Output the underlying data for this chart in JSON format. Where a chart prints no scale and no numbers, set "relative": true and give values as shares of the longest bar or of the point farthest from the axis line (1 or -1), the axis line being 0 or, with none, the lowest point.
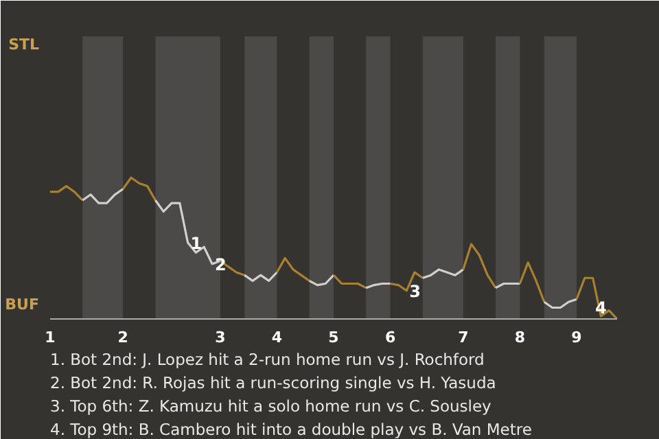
{
  "chart_data": {
    "type": "line",
    "relative": true,
    "categories": [
      "1",
      null,
      null,
      null,
      null,
      null,
      null,
      null,
      null,
      "2",
      null,
      null,
      null,
      null,
      null,
      null,
      null,
      null,
      null,
      null,
      null,
      "3",
      null,
      null,
      null,
      null,
      null,
      null,
      "4",
      null,
      null,
      null,
      null,
      null,
      null,
      "5",
      null,
      null,
      null,
      null,
      null,
      null,
      "6",
      null,
      null,
      null,
      null,
      null,
      null,
      null,
      null,
      "7",
      null,
      null,
      null,
      null,
      null,
      null,
      "8",
      null,
      null,
      null,
      null,
      null,
      null,
      "9",
      null,
      null,
      null,
      null,
      null
    ],
    "marker": "none",
    "line_style": "solid",
    "series": [
      {
        "color": "#a8802f",
        "values": [
          0.9,
          0.9,
          0.94,
          0.9,
          0.84,
          null,
          null,
          null,
          null,
          null,
          null,
          null,
          null,
          null,
          null,
          null,
          null,
          null,
          null,
          null,
          null,
          null,
          null,
          null,
          null,
          null,
          null,
          null,
          null,
          null,
          null,
          null,
          null,
          null,
          null,
          null,
          null,
          null,
          null,
          null,
          null,
          null,
          null,
          null,
          null,
          null,
          null,
          null,
          null,
          null,
          null,
          null,
          null,
          null,
          null,
          null,
          null,
          null,
          null,
          null,
          null,
          null,
          null,
          null,
          null,
          null,
          null,
          null,
          null,
          null,
          null
        ]
      },
      {
        "color": "#d0d0d0",
        "values": [
          null,
          null,
          null,
          null,
          0.84,
          0.88,
          0.82,
          0.82,
          0.88,
          0.92,
          null,
          null,
          null,
          null,
          null,
          null,
          null,
          null,
          null,
          null,
          null,
          null,
          null,
          null,
          null,
          null,
          null,
          null,
          null,
          null,
          null,
          null,
          null,
          null,
          null,
          null,
          null,
          null,
          null,
          null,
          null,
          null,
          null,
          null,
          null,
          null,
          null,
          null,
          null,
          null,
          null,
          null,
          null,
          null,
          null,
          null,
          null,
          null,
          null,
          null,
          null,
          null,
          null,
          null,
          null,
          null,
          null,
          null,
          null,
          null,
          null
        ]
      },
      {
        "color": "#a8802f",
        "values": [
          null,
          null,
          null,
          null,
          null,
          null,
          null,
          null,
          null,
          0.92,
          1,
          0.96,
          0.94,
          0.84,
          null,
          null,
          null,
          null,
          null,
          null,
          null,
          null,
          null,
          null,
          null,
          null,
          null,
          null,
          null,
          null,
          null,
          null,
          null,
          null,
          null,
          null,
          null,
          null,
          null,
          null,
          null,
          null,
          null,
          null,
          null,
          null,
          null,
          null,
          null,
          null,
          null,
          null,
          null,
          null,
          null,
          null,
          null,
          null,
          null,
          null,
          null,
          null,
          null,
          null,
          null,
          null,
          null,
          null,
          null,
          null,
          null
        ]
      },
      {
        "color": "#d0d0d0",
        "values": [
          null,
          null,
          null,
          null,
          null,
          null,
          null,
          null,
          null,
          null,
          null,
          null,
          null,
          0.84,
          0.76,
          0.82,
          0.82,
          0.54,
          0.47,
          0.51,
          0.39,
          0.41,
          null,
          null,
          null,
          null,
          null,
          null,
          null,
          null,
          null,
          null,
          null,
          null,
          null,
          null,
          null,
          null,
          null,
          null,
          null,
          null,
          null,
          null,
          null,
          null,
          null,
          null,
          null,
          null,
          null,
          null,
          null,
          null,
          null,
          null,
          null,
          null,
          null,
          null,
          null,
          null,
          null,
          null,
          null,
          null,
          null,
          null,
          null,
          null,
          null
        ]
      },
      {
        "color": "#a8802f",
        "values": [
          null,
          null,
          null,
          null,
          null,
          null,
          null,
          null,
          null,
          null,
          null,
          null,
          null,
          null,
          null,
          null,
          null,
          null,
          null,
          null,
          null,
          0.41,
          0.37,
          0.33,
          0.31,
          null,
          null,
          null,
          null,
          null,
          null,
          null,
          null,
          null,
          null,
          null,
          null,
          null,
          null,
          null,
          null,
          null,
          null,
          null,
          null,
          null,
          null,
          null,
          null,
          null,
          null,
          null,
          null,
          null,
          null,
          null,
          null,
          null,
          null,
          null,
          null,
          null,
          null,
          null,
          null,
          null,
          null,
          null,
          null,
          null,
          null
        ]
      },
      {
        "color": "#d0d0d0",
        "values": [
          null,
          null,
          null,
          null,
          null,
          null,
          null,
          null,
          null,
          null,
          null,
          null,
          null,
          null,
          null,
          null,
          null,
          null,
          null,
          null,
          null,
          null,
          null,
          null,
          0.31,
          0.27,
          0.31,
          0.27,
          0.33,
          null,
          null,
          null,
          null,
          null,
          null,
          null,
          null,
          null,
          null,
          null,
          null,
          null,
          null,
          null,
          null,
          null,
          null,
          null,
          null,
          null,
          null,
          null,
          null,
          null,
          null,
          null,
          null,
          null,
          null,
          null,
          null,
          null,
          null,
          null,
          null,
          null,
          null,
          null,
          null,
          null,
          null
        ]
      },
      {
        "color": "#a8802f",
        "values": [
          null,
          null,
          null,
          null,
          null,
          null,
          null,
          null,
          null,
          null,
          null,
          null,
          null,
          null,
          null,
          null,
          null,
          null,
          null,
          null,
          null,
          null,
          null,
          null,
          null,
          null,
          null,
          null,
          0.33,
          0.43,
          0.35,
          0.31,
          0.27,
          null,
          null,
          null,
          null,
          null,
          null,
          null,
          null,
          null,
          null,
          null,
          null,
          null,
          null,
          null,
          null,
          null,
          null,
          null,
          null,
          null,
          null,
          null,
          null,
          null,
          null,
          null,
          null,
          null,
          null,
          null,
          null,
          null,
          null,
          null,
          null,
          null,
          null
        ]
      },
      {
        "color": "#d0d0d0",
        "values": [
          null,
          null,
          null,
          null,
          null,
          null,
          null,
          null,
          null,
          null,
          null,
          null,
          null,
          null,
          null,
          null,
          null,
          null,
          null,
          null,
          null,
          null,
          null,
          null,
          null,
          null,
          null,
          null,
          null,
          null,
          null,
          null,
          0.27,
          0.24,
          0.25,
          0.31,
          null,
          null,
          null,
          null,
          null,
          null,
          null,
          null,
          null,
          null,
          null,
          null,
          null,
          null,
          null,
          null,
          null,
          null,
          null,
          null,
          null,
          null,
          null,
          null,
          null,
          null,
          null,
          null,
          null,
          null,
          null,
          null,
          null,
          null,
          null
        ]
      },
      {
        "color": "#a8802f",
        "values": [
          null,
          null,
          null,
          null,
          null,
          null,
          null,
          null,
          null,
          null,
          null,
          null,
          null,
          null,
          null,
          null,
          null,
          null,
          null,
          null,
          null,
          null,
          null,
          null,
          null,
          null,
          null,
          null,
          null,
          null,
          null,
          null,
          null,
          null,
          null,
          0.31,
          0.25,
          0.25,
          0.25,
          0.22,
          null,
          null,
          null,
          null,
          null,
          null,
          null,
          null,
          null,
          null,
          null,
          null,
          null,
          null,
          null,
          null,
          null,
          null,
          null,
          null,
          null,
          null,
          null,
          null,
          null,
          null,
          null,
          null,
          null,
          null,
          null
        ]
      },
      {
        "color": "#d0d0d0",
        "values": [
          null,
          null,
          null,
          null,
          null,
          null,
          null,
          null,
          null,
          null,
          null,
          null,
          null,
          null,
          null,
          null,
          null,
          null,
          null,
          null,
          null,
          null,
          null,
          null,
          null,
          null,
          null,
          null,
          null,
          null,
          null,
          null,
          null,
          null,
          null,
          null,
          null,
          null,
          null,
          0.22,
          0.24,
          0.25,
          0.25,
          null,
          null,
          null,
          null,
          null,
          null,
          null,
          null,
          null,
          null,
          null,
          null,
          null,
          null,
          null,
          null,
          null,
          null,
          null,
          null,
          null,
          null,
          null,
          null,
          null,
          null,
          null,
          null
        ]
      },
      {
        "color": "#a8802f",
        "values": [
          null,
          null,
          null,
          null,
          null,
          null,
          null,
          null,
          null,
          null,
          null,
          null,
          null,
          null,
          null,
          null,
          null,
          null,
          null,
          null,
          null,
          null,
          null,
          null,
          null,
          null,
          null,
          null,
          null,
          null,
          null,
          null,
          null,
          null,
          null,
          null,
          null,
          null,
          null,
          null,
          null,
          null,
          0.25,
          0.24,
          0.2,
          0.33,
          0.29,
          null,
          null,
          null,
          null,
          null,
          null,
          null,
          null,
          null,
          null,
          null,
          null,
          null,
          null,
          null,
          null,
          null,
          null,
          null,
          null,
          null,
          null,
          null,
          null
        ]
      },
      {
        "color": "#d0d0d0",
        "values": [
          null,
          null,
          null,
          null,
          null,
          null,
          null,
          null,
          null,
          null,
          null,
          null,
          null,
          null,
          null,
          null,
          null,
          null,
          null,
          null,
          null,
          null,
          null,
          null,
          null,
          null,
          null,
          null,
          null,
          null,
          null,
          null,
          null,
          null,
          null,
          null,
          null,
          null,
          null,
          null,
          null,
          null,
          null,
          null,
          null,
          null,
          0.29,
          0.31,
          0.35,
          0.33,
          0.31,
          0.35,
          null,
          null,
          null,
          null,
          null,
          null,
          null,
          null,
          null,
          null,
          null,
          null,
          null,
          null,
          null,
          null,
          null,
          null,
          null
        ]
      },
      {
        "color": "#a8802f",
        "values": [
          null,
          null,
          null,
          null,
          null,
          null,
          null,
          null,
          null,
          null,
          null,
          null,
          null,
          null,
          null,
          null,
          null,
          null,
          null,
          null,
          null,
          null,
          null,
          null,
          null,
          null,
          null,
          null,
          null,
          null,
          null,
          null,
          null,
          null,
          null,
          null,
          null,
          null,
          null,
          null,
          null,
          null,
          null,
          null,
          null,
          null,
          null,
          null,
          null,
          null,
          null,
          0.35,
          0.53,
          0.45,
          0.31,
          0.22,
          null,
          null,
          null,
          null,
          null,
          null,
          null,
          null,
          null,
          null,
          null,
          null,
          null,
          null,
          null
        ]
      },
      {
        "color": "#d0d0d0",
        "values": [
          null,
          null,
          null,
          null,
          null,
          null,
          null,
          null,
          null,
          null,
          null,
          null,
          null,
          null,
          null,
          null,
          null,
          null,
          null,
          null,
          null,
          null,
          null,
          null,
          null,
          null,
          null,
          null,
          null,
          null,
          null,
          null,
          null,
          null,
          null,
          null,
          null,
          null,
          null,
          null,
          null,
          null,
          null,
          null,
          null,
          null,
          null,
          null,
          null,
          null,
          null,
          null,
          null,
          null,
          null,
          0.22,
          0.25,
          0.25,
          0.25,
          null,
          null,
          null,
          null,
          null,
          null,
          null,
          null,
          null,
          null,
          null,
          null
        ]
      },
      {
        "color": "#a8802f",
        "values": [
          null,
          null,
          null,
          null,
          null,
          null,
          null,
          null,
          null,
          null,
          null,
          null,
          null,
          null,
          null,
          null,
          null,
          null,
          null,
          null,
          null,
          null,
          null,
          null,
          null,
          null,
          null,
          null,
          null,
          null,
          null,
          null,
          null,
          null,
          null,
          null,
          null,
          null,
          null,
          null,
          null,
          null,
          null,
          null,
          null,
          null,
          null,
          null,
          null,
          null,
          null,
          null,
          null,
          null,
          null,
          null,
          null,
          null,
          0.25,
          0.4,
          0.27,
          0.12,
          null,
          null,
          null,
          null,
          null,
          null,
          null,
          null,
          null
        ]
      },
      {
        "color": "#d0d0d0",
        "values": [
          null,
          null,
          null,
          null,
          null,
          null,
          null,
          null,
          null,
          null,
          null,
          null,
          null,
          null,
          null,
          null,
          null,
          null,
          null,
          null,
          null,
          null,
          null,
          null,
          null,
          null,
          null,
          null,
          null,
          null,
          null,
          null,
          null,
          null,
          null,
          null,
          null,
          null,
          null,
          null,
          null,
          null,
          null,
          null,
          null,
          null,
          null,
          null,
          null,
          null,
          null,
          null,
          null,
          null,
          null,
          null,
          null,
          null,
          null,
          null,
          null,
          0.12,
          0.08,
          0.08,
          0.12,
          0.14,
          null,
          null,
          null,
          null,
          null
        ]
      },
      {
        "color": "#a8802f",
        "values": [
          null,
          null,
          null,
          null,
          null,
          null,
          null,
          null,
          null,
          null,
          null,
          null,
          null,
          null,
          null,
          null,
          null,
          null,
          null,
          null,
          null,
          null,
          null,
          null,
          null,
          null,
          null,
          null,
          null,
          null,
          null,
          null,
          null,
          null,
          null,
          null,
          null,
          null,
          null,
          null,
          null,
          null,
          null,
          null,
          null,
          null,
          null,
          null,
          null,
          null,
          null,
          null,
          null,
          null,
          null,
          null,
          null,
          null,
          null,
          null,
          null,
          null,
          null,
          null,
          null,
          0.14,
          0.29,
          0.29,
          0.02,
          0.06,
          0
        ]
      }
    ],
    "annotations": [
      "STL",
      "BUF",
      {
        "text": "1",
        "y": 0.54
      },
      {
        "text": "2",
        "y": 0.39
      },
      {
        "text": "3",
        "y": 0.2
      },
      {
        "text": "4",
        "y": 0.02
      },
      "1. Bot 2nd: J. Lopez hit a 2-run home run vs J. Rochford",
      "2. Bot 2nd: R. Rojas hit a run-scoring single vs H. Yasuda",
      "3. Top 6th: Z. Kamuzu hit a solo home run vs C. Sousley",
      "4. Top 9th: B. Cambero hit into a double play vs B. Van Metre"
    ]
  }
}
